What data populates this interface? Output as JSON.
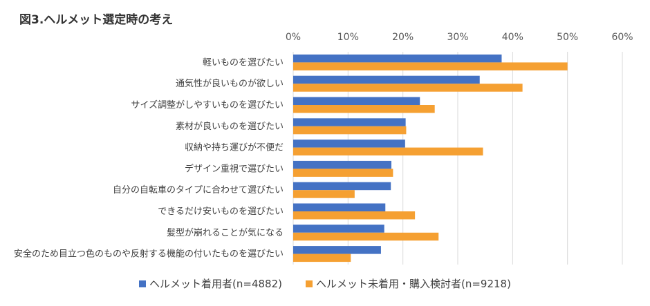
{
  "title": "図3.ヘルメット選定時の考え",
  "chart_data": {
    "type": "bar",
    "orientation": "horizontal",
    "title": "図3.ヘルメット選定時の考え",
    "xlim": [
      0,
      60
    ],
    "x_ticks": [
      "0%",
      "10%",
      "20%",
      "30%",
      "40%",
      "50%",
      "60%"
    ],
    "x_tick_values": [
      0,
      10,
      20,
      30,
      40,
      50,
      60
    ],
    "unit": "%",
    "grid": "vertical",
    "legend_position": "bottom",
    "categories": [
      "軽いものを選びたい",
      "通気性が良いものが欲しい",
      "サイズ調整がしやすいものを選びたい",
      "素材が良いものを選びたい",
      "収納や持ち運びが不便だ",
      "デザイン重視で選びたい",
      "自分の自転車のタイプに合わせて選びたい",
      "できるだけ安いものを選びたい",
      "髪型が崩れることが気になる",
      "安全のため目立つ色のものや反射する機能の付いたものを選びたい"
    ],
    "series": [
      {
        "name": "ヘルメット着用者(n=4882)",
        "color": "#4472C4",
        "values": [
          38.0,
          34.0,
          23.1,
          20.5,
          20.4,
          17.9,
          17.8,
          16.8,
          16.6,
          16.0
        ]
      },
      {
        "name": "ヘルメット未着用・購入検討者(n=9218)",
        "color": "#F5A032",
        "values": [
          50.0,
          41.8,
          25.8,
          20.6,
          34.6,
          18.2,
          11.2,
          22.2,
          26.5,
          10.5
        ]
      }
    ]
  }
}
